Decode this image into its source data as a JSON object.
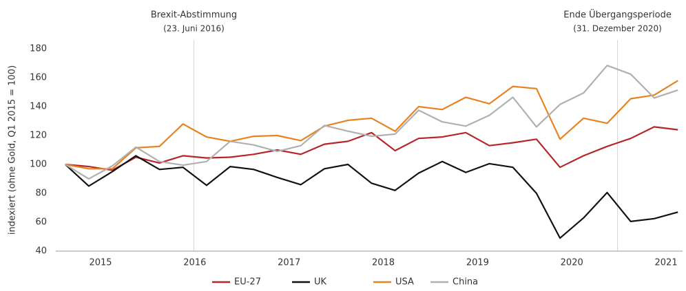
{
  "chart_data": {
    "type": "line",
    "y_label": "indexiert (ohne Gold, Q1 2015 = 100)",
    "x": [
      2015,
      2015.25,
      2015.5,
      2015.75,
      2016,
      2016.25,
      2016.5,
      2016.75,
      2017,
      2017.25,
      2017.5,
      2017.75,
      2018,
      2018.25,
      2018.5,
      2018.75,
      2019,
      2019.25,
      2019.5,
      2019.75,
      2020,
      2020.25,
      2020.5,
      2020.75,
      2021,
      2021.25,
      2021.5
    ],
    "series": [
      {
        "name": "EU-27",
        "color": "#b5252b",
        "values": [
          100,
          98.5,
          96,
          105,
          101,
          106,
          104.5,
          105,
          107,
          110,
          107,
          114,
          116,
          122,
          109.5,
          118,
          119,
          122,
          113,
          115,
          117.5,
          98,
          106,
          112.5,
          118,
          126,
          124
        ]
      },
      {
        "name": "UK",
        "color": "#111111",
        "values": [
          100,
          85,
          95,
          106,
          96.5,
          98,
          85.5,
          98.5,
          96.5,
          91,
          86,
          97,
          100,
          87,
          82,
          94,
          102,
          94.5,
          100.5,
          98,
          80,
          49,
          63,
          80.5,
          60.5,
          62.5,
          67
        ]
      },
      {
        "name": "USA",
        "color": "#e8821e",
        "values": [
          100,
          97,
          97,
          111.5,
          112.5,
          128,
          119,
          116,
          119.5,
          120,
          116.5,
          126.5,
          130.5,
          132,
          123,
          140,
          138,
          146.5,
          142,
          154,
          152.5,
          117.5,
          132,
          128.5,
          145.5,
          148,
          158
        ]
      },
      {
        "name": "China",
        "color": "#b0b0b0",
        "values": [
          100,
          90,
          99,
          112,
          102,
          99.5,
          102,
          116,
          113.5,
          109,
          113,
          127,
          123,
          119.5,
          121,
          137.5,
          129.5,
          126.5,
          134,
          146.5,
          126,
          141.5,
          149.5,
          168.5,
          162.5,
          146,
          151.5
        ]
      }
    ],
    "xlim": [
      2014.9,
      2021.55
    ],
    "xticks": [
      {
        "value": 2015.375,
        "label": "2015"
      },
      {
        "value": 2016.375,
        "label": "2016"
      },
      {
        "value": 2017.375,
        "label": "2017"
      },
      {
        "value": 2018.375,
        "label": "2018"
      },
      {
        "value": 2019.375,
        "label": "2019"
      },
      {
        "value": 2020.375,
        "label": "2020"
      },
      {
        "value": 2021.375,
        "label": "2021"
      }
    ],
    "ylim": [
      40,
      180
    ],
    "yticks": [
      40,
      60,
      80,
      100,
      120,
      140,
      160,
      180
    ],
    "grid": false,
    "legend": "bottom",
    "annotations": [
      {
        "x": 2016.365,
        "text": "Brexit-Abstimmung",
        "subtext": "(23. Juni 2016)"
      },
      {
        "x": 2020.86,
        "text": "Ende Übergangsperiode",
        "subtext": "(31. Dezember 2020)"
      }
    ]
  }
}
